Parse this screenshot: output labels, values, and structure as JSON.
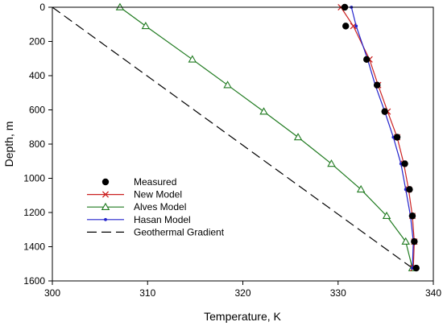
{
  "chart_data": {
    "type": "line",
    "title": "",
    "xlabel": "Temperature, K",
    "ylabel": "Depth, m",
    "xlim": [
      300,
      340
    ],
    "ylim": [
      1600,
      0
    ],
    "y_inverted": true,
    "x_ticks": [
      300,
      310,
      320,
      330,
      340
    ],
    "y_ticks": [
      0,
      200,
      400,
      600,
      800,
      1000,
      1200,
      1400,
      1600
    ],
    "grid": false,
    "legend_position": "lower-left",
    "series": [
      {
        "name": "Measured",
        "style": "markers",
        "marker": "filled-circle",
        "color": "#000000",
        "x": [
          330.7,
          330.8,
          333.0,
          334.1,
          334.9,
          336.2,
          337.0,
          337.5,
          337.8,
          338.0,
          338.2
        ],
        "y": [
          0,
          110,
          305,
          455,
          610,
          760,
          915,
          1065,
          1220,
          1370,
          1525
        ]
      },
      {
        "name": "New Model",
        "style": "line-markers",
        "marker": "x",
        "color": "#cc2222",
        "x": [
          330.3,
          331.6,
          333.3,
          334.2,
          335.2,
          336.2,
          336.9,
          337.4,
          337.8,
          338.0,
          337.9
        ],
        "y": [
          0,
          110,
          305,
          455,
          610,
          760,
          915,
          1065,
          1220,
          1370,
          1525
        ]
      },
      {
        "name": "Alves Model",
        "style": "line-markers",
        "marker": "open-triangle",
        "color": "#1f7a1f",
        "x": [
          307.1,
          309.8,
          314.7,
          318.4,
          322.2,
          325.8,
          329.3,
          332.4,
          335.1,
          337.1,
          337.8
        ],
        "y": [
          0,
          110,
          305,
          455,
          610,
          760,
          915,
          1065,
          1220,
          1370,
          1525
        ]
      },
      {
        "name": "Hasan Model",
        "style": "line-markers",
        "marker": "small-dot",
        "color": "#2222cc",
        "x": [
          331.4,
          331.9,
          333.1,
          333.9,
          334.9,
          335.8,
          336.6,
          337.1,
          337.6,
          337.9,
          337.8
        ],
        "y": [
          0,
          110,
          305,
          455,
          610,
          760,
          915,
          1065,
          1220,
          1370,
          1525
        ]
      },
      {
        "name": "Geothermal Gradient",
        "style": "dashed-line",
        "color": "#000000",
        "x": [
          300,
          337.8
        ],
        "y": [
          0,
          1525
        ]
      }
    ]
  }
}
